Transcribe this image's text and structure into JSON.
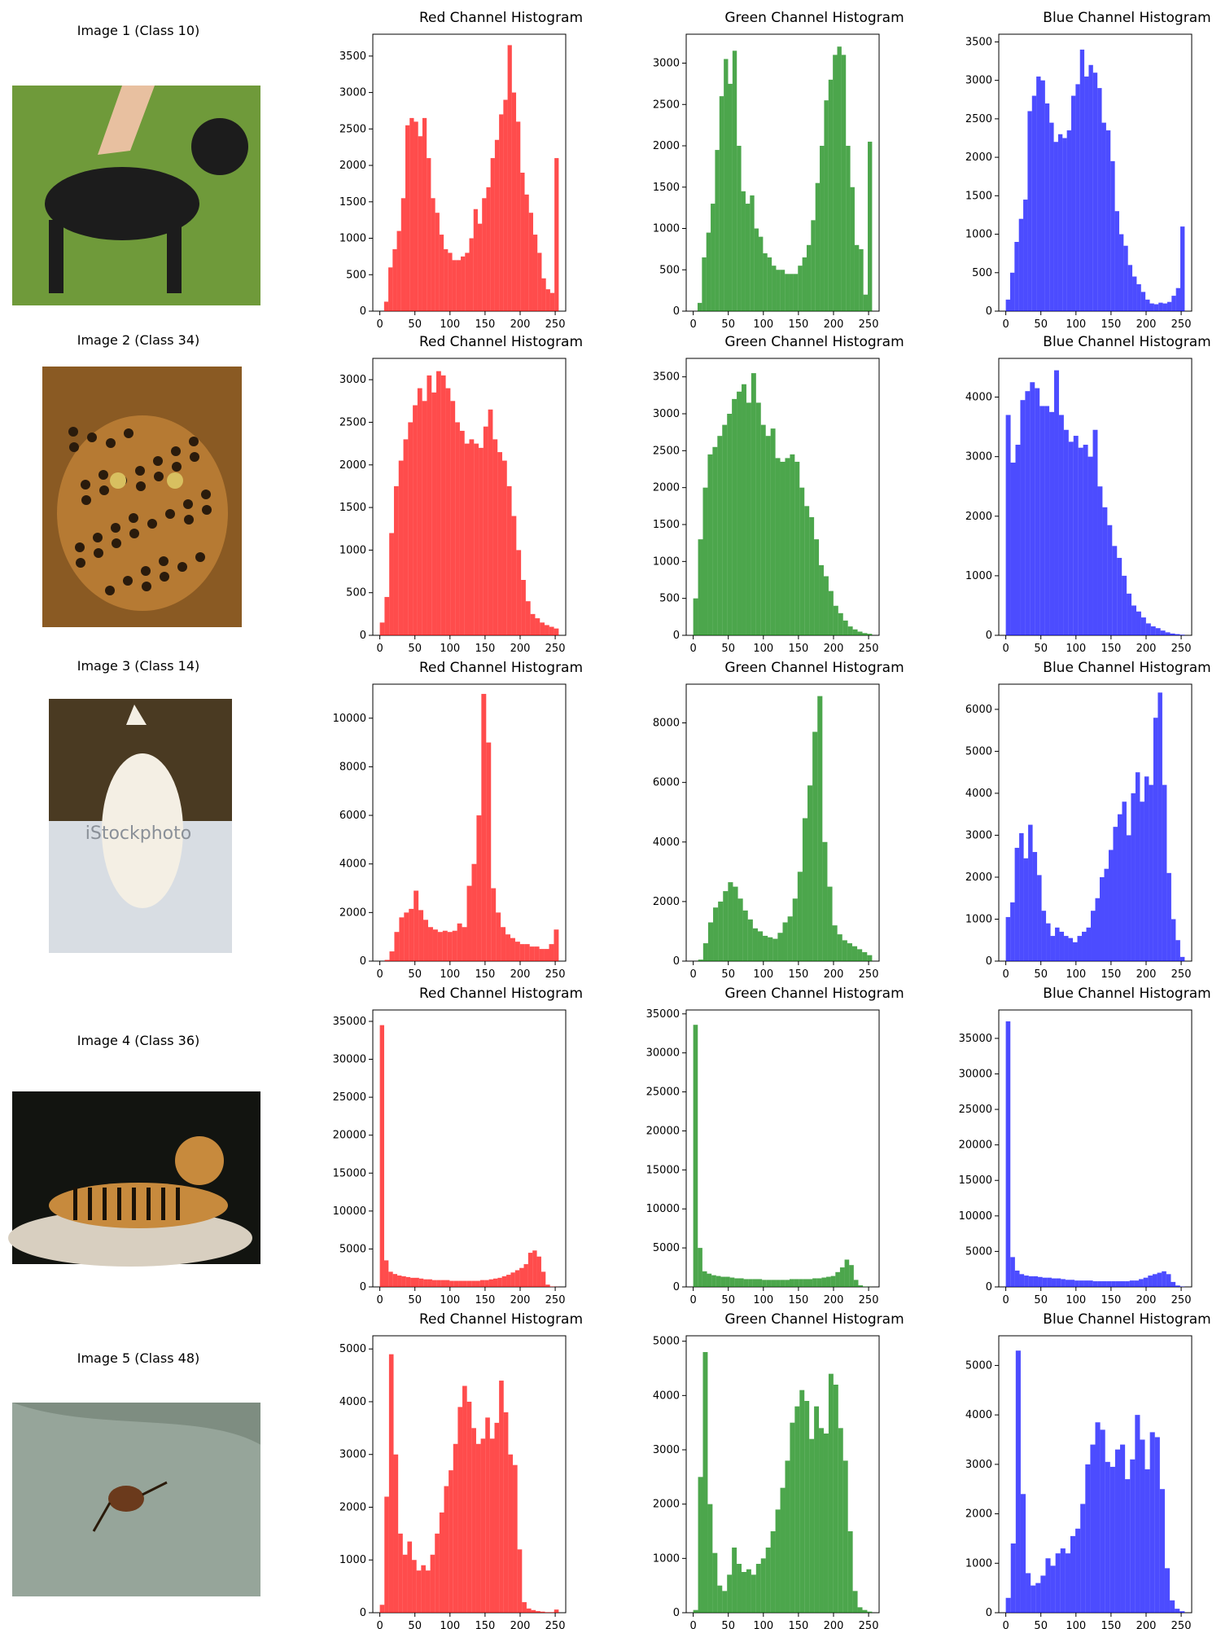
{
  "layout_note": "",
  "rows": [
    {
      "label": "Image 1 (Class 10)",
      "thumb": {
        "kind": "dog-on-grass",
        "bg": "#6f9a3a",
        "fg": "#1c1c1c"
      },
      "thumb_icon": "dog-photo",
      "charts": [
        {
          "title": "Red Channel Histogram",
          "color": "#ff0000",
          "ylim": [
            0,
            3800
          ],
          "yticks": [
            0,
            500,
            1000,
            1500,
            2000,
            2500,
            3000,
            3500
          ],
          "values": [
            0,
            130,
            600,
            850,
            1100,
            1550,
            2550,
            2650,
            2600,
            2400,
            2650,
            2100,
            1550,
            1350,
            1050,
            850,
            800,
            700,
            700,
            750,
            800,
            1000,
            1400,
            1200,
            1550,
            1700,
            2100,
            2350,
            2700,
            2900,
            3650,
            3000,
            2600,
            1900,
            1600,
            1350,
            1050,
            800,
            450,
            300,
            250,
            2100
          ]
        },
        {
          "title": "Green Channel Histogram",
          "color": "#008000",
          "ylim": [
            0,
            3350
          ],
          "yticks": [
            0,
            500,
            1000,
            1500,
            2000,
            2500,
            3000
          ],
          "values": [
            0,
            100,
            650,
            950,
            1300,
            1950,
            2600,
            3050,
            2750,
            3150,
            2000,
            1450,
            1300,
            1400,
            1000,
            900,
            700,
            650,
            550,
            500,
            500,
            450,
            450,
            450,
            550,
            650,
            800,
            1100,
            1550,
            2000,
            2550,
            2800,
            3100,
            3200,
            3100,
            2000,
            1500,
            800,
            750,
            200,
            2050
          ]
        },
        {
          "title": "Blue Channel Histogram",
          "color": "#0000ff",
          "ylim": [
            0,
            3600
          ],
          "yticks": [
            0,
            500,
            1000,
            1500,
            2000,
            2500,
            3000,
            3500
          ],
          "values": [
            150,
            500,
            900,
            1200,
            1450,
            2600,
            2800,
            3050,
            3000,
            2700,
            2450,
            2200,
            2300,
            2250,
            2350,
            2800,
            2950,
            3400,
            3050,
            3200,
            3100,
            2900,
            2450,
            2350,
            1950,
            1300,
            1000,
            850,
            600,
            450,
            350,
            250,
            150,
            100,
            90,
            110,
            100,
            120,
            200,
            300,
            1100
          ]
        }
      ]
    },
    {
      "label": "Image 2 (Class 34)",
      "thumb": {
        "kind": "leopard-face",
        "bg": "#8a5a23",
        "fg": "#2a1b0c"
      },
      "thumb_icon": "leopard-photo",
      "charts": [
        {
          "title": "Red Channel Histogram",
          "color": "#ff0000",
          "ylim": [
            0,
            3250
          ],
          "yticks": [
            0,
            500,
            1000,
            1500,
            2000,
            2500,
            3000
          ],
          "values": [
            150,
            450,
            1200,
            1750,
            2050,
            2300,
            2500,
            2700,
            2900,
            2750,
            3050,
            2850,
            3100,
            3050,
            2900,
            2750,
            2500,
            2400,
            2250,
            2300,
            2250,
            2200,
            2450,
            2650,
            2300,
            2150,
            2050,
            1750,
            1400,
            1000,
            650,
            400,
            250,
            200,
            150,
            120,
            100,
            80
          ]
        },
        {
          "title": "Green Channel Histogram",
          "color": "#008000",
          "ylim": [
            0,
            3750
          ],
          "yticks": [
            0,
            500,
            1000,
            1500,
            2000,
            2500,
            3000,
            3500
          ],
          "values": [
            500,
            1300,
            2000,
            2450,
            2550,
            2700,
            2850,
            3000,
            3200,
            3300,
            3400,
            3150,
            3550,
            3150,
            2850,
            2700,
            2800,
            2400,
            2350,
            2400,
            2450,
            2350,
            2000,
            1750,
            1600,
            1300,
            950,
            800,
            600,
            400,
            300,
            200,
            120,
            80,
            50,
            30,
            20
          ]
        },
        {
          "title": "Blue Channel Histogram",
          "color": "#0000ff",
          "ylim": [
            0,
            4650
          ],
          "yticks": [
            0,
            1000,
            2000,
            3000,
            4000
          ],
          "values": [
            3700,
            2900,
            3200,
            3950,
            4100,
            4250,
            4150,
            3850,
            3850,
            3750,
            4450,
            3700,
            3450,
            3250,
            3350,
            3150,
            3200,
            3000,
            3450,
            2500,
            2150,
            1850,
            1500,
            1300,
            1000,
            700,
            500,
            400,
            300,
            200,
            150,
            120,
            80,
            50,
            30,
            20,
            10
          ]
        }
      ]
    },
    {
      "label": "Image 3 (Class 14)",
      "thumb": {
        "kind": "wolf-in-snow",
        "bg": "#d8dde3",
        "fg": "#f4efe4",
        "watermark": "iStockphoto"
      },
      "thumb_icon": "wolf-photo",
      "charts": [
        {
          "title": "Red Channel Histogram",
          "color": "#ff0000",
          "ylim": [
            0,
            11400
          ],
          "yticks": [
            0,
            2000,
            4000,
            6000,
            8000,
            10000
          ],
          "values": [
            0,
            50,
            400,
            1200,
            1800,
            2000,
            2150,
            2900,
            2100,
            1700,
            1400,
            1300,
            1200,
            1250,
            1200,
            1250,
            1550,
            1400,
            3100,
            4000,
            6000,
            11000,
            9000,
            3000,
            2000,
            1400,
            1100,
            950,
            800,
            700,
            700,
            600,
            600,
            500,
            500,
            700,
            1300
          ]
        },
        {
          "title": "Green Channel Histogram",
          "color": "#008000",
          "ylim": [
            0,
            9300
          ],
          "yticks": [
            0,
            2000,
            4000,
            6000,
            8000
          ],
          "values": [
            0,
            50,
            600,
            1300,
            1800,
            2000,
            2350,
            2650,
            2500,
            2100,
            1700,
            1400,
            1100,
            1000,
            850,
            800,
            750,
            950,
            1300,
            1500,
            2100,
            3000,
            4800,
            5900,
            7700,
            8900,
            4000,
            2500,
            1200,
            900,
            700,
            600,
            500,
            400,
            300,
            200
          ]
        },
        {
          "title": "Blue Channel Histogram",
          "color": "#0000ff",
          "ylim": [
            0,
            6600
          ],
          "yticks": [
            0,
            1000,
            2000,
            3000,
            4000,
            5000,
            6000
          ],
          "values": [
            1050,
            1400,
            2700,
            3050,
            2450,
            3250,
            2600,
            2050,
            1200,
            900,
            600,
            800,
            700,
            600,
            550,
            450,
            600,
            700,
            800,
            1200,
            1500,
            2000,
            2200,
            2650,
            3200,
            3500,
            3800,
            3000,
            4000,
            4500,
            3800,
            4400,
            4200,
            5800,
            6400,
            4200,
            2100,
            1000,
            500,
            100
          ]
        }
      ]
    },
    {
      "label": "Image 4 (Class 36)",
      "thumb": {
        "kind": "tiger-on-rock",
        "bg": "#121410",
        "fg": "#c78a3d"
      },
      "thumb_icon": "tiger-photo",
      "charts": [
        {
          "title": "Red Channel Histogram",
          "color": "#ff0000",
          "ylim": [
            0,
            36500
          ],
          "yticks": [
            0,
            5000,
            10000,
            15000,
            20000,
            25000,
            30000,
            35000
          ],
          "values": [
            34500,
            3500,
            2000,
            1700,
            1500,
            1400,
            1300,
            1200,
            1200,
            1100,
            1000,
            1000,
            900,
            900,
            900,
            900,
            800,
            800,
            800,
            800,
            800,
            800,
            800,
            900,
            900,
            1000,
            1100,
            1200,
            1400,
            1600,
            1900,
            2200,
            2500,
            3000,
            4500,
            4800,
            4000,
            2000,
            300,
            50,
            20
          ]
        },
        {
          "title": "Green Channel Histogram",
          "color": "#008000",
          "ylim": [
            0,
            35500
          ],
          "yticks": [
            0,
            5000,
            10000,
            15000,
            20000,
            25000,
            30000,
            35000
          ],
          "values": [
            33600,
            5000,
            2000,
            1700,
            1500,
            1400,
            1300,
            1300,
            1200,
            1100,
            1100,
            1000,
            1000,
            1000,
            1000,
            900,
            900,
            900,
            900,
            900,
            900,
            1000,
            1000,
            1000,
            1000,
            1000,
            1100,
            1100,
            1200,
            1300,
            1400,
            1900,
            2500,
            3500,
            2800,
            900,
            200,
            50,
            20
          ]
        },
        {
          "title": "Blue Channel Histogram",
          "color": "#0000ff",
          "ylim": [
            0,
            39000
          ],
          "yticks": [
            0,
            5000,
            10000,
            15000,
            20000,
            25000,
            30000,
            35000
          ],
          "values": [
            37400,
            4200,
            2300,
            1800,
            1600,
            1500,
            1500,
            1400,
            1300,
            1300,
            1200,
            1200,
            1100,
            1000,
            1000,
            900,
            900,
            900,
            900,
            800,
            800,
            800,
            800,
            800,
            800,
            800,
            800,
            900,
            900,
            1100,
            1300,
            1600,
            1800,
            2000,
            2200,
            1800,
            700,
            200,
            50
          ]
        }
      ]
    },
    {
      "label": "Image 5 (Class 48)",
      "thumb": {
        "kind": "beetle-on-leaf",
        "bg": "#7e8d81",
        "fg": "#6b3a1c"
      },
      "thumb_icon": "beetle-photo",
      "charts": [
        {
          "title": "Red Channel Histogram",
          "color": "#ff0000",
          "ylim": [
            0,
            5250
          ],
          "yticks": [
            0,
            1000,
            2000,
            3000,
            4000,
            5000
          ],
          "values": [
            150,
            2200,
            4900,
            3000,
            1500,
            1100,
            1350,
            1000,
            800,
            900,
            800,
            1100,
            1500,
            1900,
            2400,
            2700,
            3200,
            3900,
            4300,
            4000,
            3500,
            3200,
            3300,
            3700,
            3300,
            3600,
            4400,
            3800,
            3000,
            2800,
            1200,
            200,
            80,
            50,
            30,
            20,
            10,
            10,
            60
          ]
        },
        {
          "title": "Green Channel Histogram",
          "color": "#008000",
          "ylim": [
            0,
            5100
          ],
          "yticks": [
            0,
            1000,
            2000,
            3000,
            4000,
            5000
          ],
          "values": [
            50,
            2500,
            4800,
            2000,
            1100,
            500,
            400,
            700,
            1200,
            900,
            750,
            800,
            700,
            900,
            1000,
            1200,
            1500,
            1900,
            2300,
            2800,
            3500,
            3800,
            4100,
            3900,
            3200,
            3800,
            3400,
            3300,
            4400,
            4200,
            3400,
            2800,
            1500,
            400,
            100,
            50,
            20
          ]
        },
        {
          "title": "Blue Channel Histogram",
          "color": "#0000ff",
          "ylim": [
            0,
            5600
          ],
          "yticks": [
            0,
            1000,
            2000,
            3000,
            4000,
            5000
          ],
          "values": [
            300,
            1400,
            5300,
            2400,
            800,
            550,
            600,
            750,
            1100,
            950,
            1200,
            1300,
            1200,
            1550,
            1700,
            2200,
            3000,
            3400,
            3850,
            3700,
            3050,
            2950,
            3300,
            3400,
            2700,
            3100,
            4000,
            3500,
            2900,
            3650,
            3550,
            2500,
            900,
            250,
            80,
            30
          ]
        }
      ]
    }
  ],
  "x_axis": {
    "range": [
      0,
      255
    ],
    "ticks": [
      0,
      50,
      100,
      150,
      200,
      250
    ]
  }
}
